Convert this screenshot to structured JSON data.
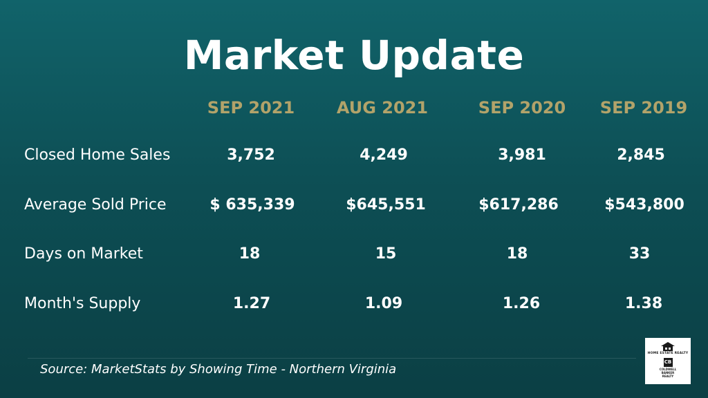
{
  "title": "Market Update",
  "columns": [
    "SEP 2021",
    "AUG 2021",
    "SEP 2020",
    "SEP 2019"
  ],
  "rows": [
    {
      "label": "Closed Home Sales",
      "values": [
        "3,752",
        "4,249",
        "3,981",
        "2,845"
      ]
    },
    {
      "label": "Average Sold Price",
      "values": [
        "$ 635,339",
        "$645,551",
        "$617,286",
        "$543,800"
      ]
    },
    {
      "label": "Days on Market",
      "values": [
        "18",
        "15",
        "18",
        "33"
      ]
    },
    {
      "label": "Month's Supply",
      "values": [
        "1.27",
        "1.09",
        "1.26",
        "1.38"
      ]
    }
  ],
  "source": "Source: MarketStats by Showing Time - Northern Virginia",
  "logo": {
    "brand": "HOME ESTATE REALTY",
    "badge": "CB",
    "cb_line1": "COLDWELL",
    "cb_line2": "BANKER",
    "cb_line3": "REALTY"
  },
  "colors": {
    "background_top": "#11636a",
    "background_bottom": "#0b3f44",
    "header_gold": "#b2a36a",
    "text": "#ffffff"
  },
  "icons": [
    "house-icon",
    "coldwell-banker-icon"
  ]
}
